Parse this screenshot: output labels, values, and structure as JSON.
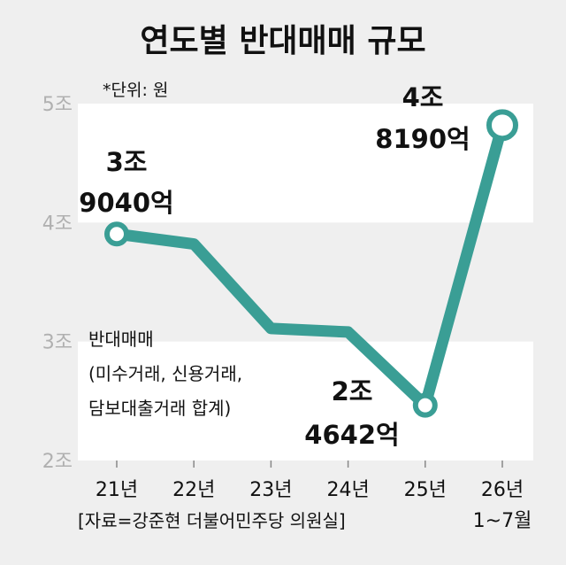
{
  "title": "연도별 반대매매 규모",
  "unit_note": "*단위: 원",
  "source": "[자료=강준현 더불어민주당 의원실]",
  "series_note": [
    "반대매매",
    "(미수거래, 신용거래,",
    "담보대출거래 합계)"
  ],
  "colors": {
    "line": "#3a9e95",
    "band": "#ffffff",
    "background": "#efefef",
    "axis_text": "#b0b0b0"
  },
  "chart_data": {
    "type": "line",
    "categories": [
      "21년",
      "22년",
      "23년",
      "24년",
      "25년",
      "26년 1~7월"
    ],
    "category_lines": [
      [
        "21년"
      ],
      [
        "22년"
      ],
      [
        "23년"
      ],
      [
        "24년"
      ],
      [
        "25년"
      ],
      [
        "26년",
        "1~7월"
      ]
    ],
    "values": [
      3.904,
      3.82,
      3.11,
      3.08,
      2.4642,
      4.819
    ],
    "y_ticks": [
      "2조",
      "3조",
      "4조",
      "5조"
    ],
    "ylim": [
      2,
      5
    ],
    "data_labels": [
      {
        "index": 0,
        "lines": [
          "3조",
          "9040억"
        ]
      },
      {
        "index": 4,
        "lines": [
          "2조",
          "4642억"
        ]
      },
      {
        "index": 5,
        "lines": [
          "4조",
          "8190억"
        ]
      }
    ],
    "marker_indices": [
      0,
      4,
      5
    ]
  }
}
